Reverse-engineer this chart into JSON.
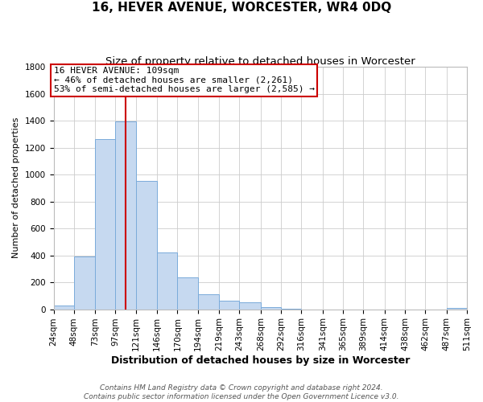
{
  "title": "16, HEVER AVENUE, WORCESTER, WR4 0DQ",
  "subtitle": "Size of property relative to detached houses in Worcester",
  "xlabel": "Distribution of detached houses by size in Worcester",
  "ylabel": "Number of detached properties",
  "footer_lines": [
    "Contains HM Land Registry data © Crown copyright and database right 2024.",
    "Contains public sector information licensed under the Open Government Licence v3.0."
  ],
  "bin_edges": [
    24,
    48,
    73,
    97,
    121,
    146,
    170,
    194,
    219,
    243,
    268,
    292,
    316,
    341,
    365,
    389,
    414,
    438,
    462,
    487,
    511
  ],
  "bin_heights": [
    25,
    390,
    1260,
    1395,
    950,
    420,
    235,
    110,
    65,
    50,
    15,
    5,
    0,
    0,
    0,
    0,
    0,
    0,
    0,
    10
  ],
  "bar_facecolor": "#c6d9f0",
  "bar_edgecolor": "#7aabda",
  "grid_color": "#cccccc",
  "property_size": 109,
  "vline_color": "#cc0000",
  "annotation_text": "16 HEVER AVENUE: 109sqm\n← 46% of detached houses are smaller (2,261)\n53% of semi-detached houses are larger (2,585) →",
  "annotation_box_edgecolor": "#cc0000",
  "annotation_box_facecolor": "#ffffff",
  "ylim": [
    0,
    1800
  ],
  "yticks": [
    0,
    200,
    400,
    600,
    800,
    1000,
    1200,
    1400,
    1600,
    1800
  ],
  "xtick_labels": [
    "24sqm",
    "48sqm",
    "73sqm",
    "97sqm",
    "121sqm",
    "146sqm",
    "170sqm",
    "194sqm",
    "219sqm",
    "243sqm",
    "268sqm",
    "292sqm",
    "316sqm",
    "341sqm",
    "365sqm",
    "389sqm",
    "414sqm",
    "438sqm",
    "462sqm",
    "487sqm",
    "511sqm"
  ],
  "title_fontsize": 11,
  "subtitle_fontsize": 9.5,
  "xlabel_fontsize": 9,
  "ylabel_fontsize": 8,
  "tick_fontsize": 7.5,
  "annotation_fontsize": 8,
  "footer_fontsize": 6.5
}
